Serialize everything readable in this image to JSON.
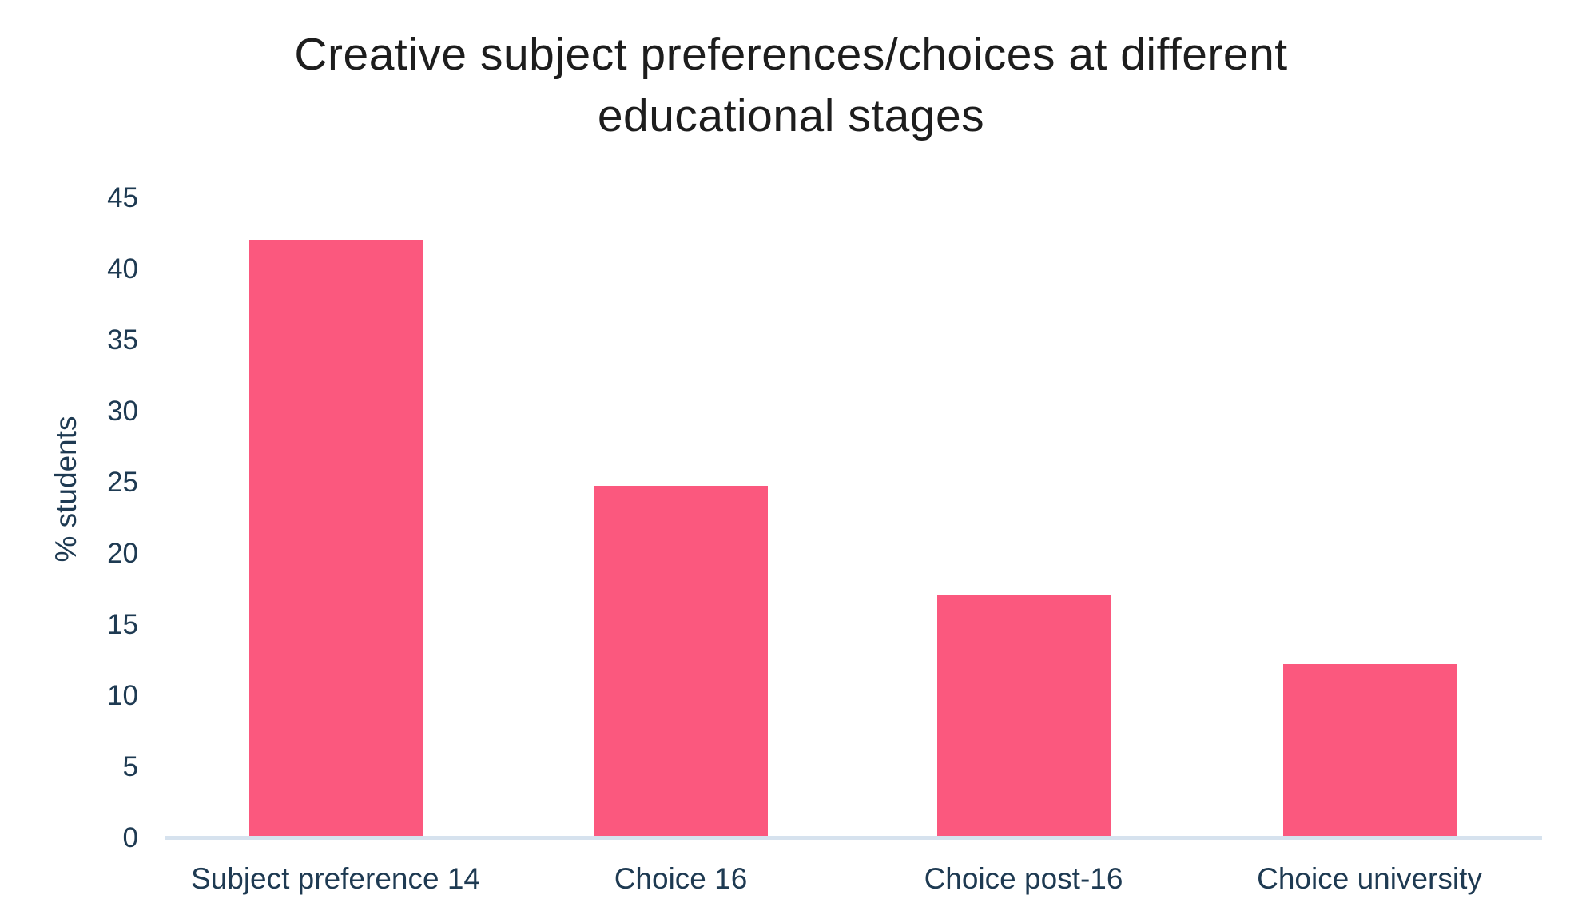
{
  "chart_data": {
    "type": "bar",
    "title": "Creative subject preferences/choices at different educational stages",
    "ylabel": "% students",
    "xlabel": "",
    "categories": [
      "Subject preference 14",
      "Choice 16",
      "Choice post-16",
      "Choice university"
    ],
    "values": [
      42,
      24.7,
      17,
      12.2
    ],
    "ylim": [
      0,
      45
    ],
    "y_ticks": [
      0,
      5,
      10,
      15,
      20,
      25,
      30,
      35,
      40,
      45
    ],
    "grid": "off",
    "legend": "none",
    "bar_color": "#FB587E",
    "axis_line_color": "#D6E2EE",
    "axis_text_color": "#1E3A52",
    "title_color": "#1D1D1D"
  }
}
